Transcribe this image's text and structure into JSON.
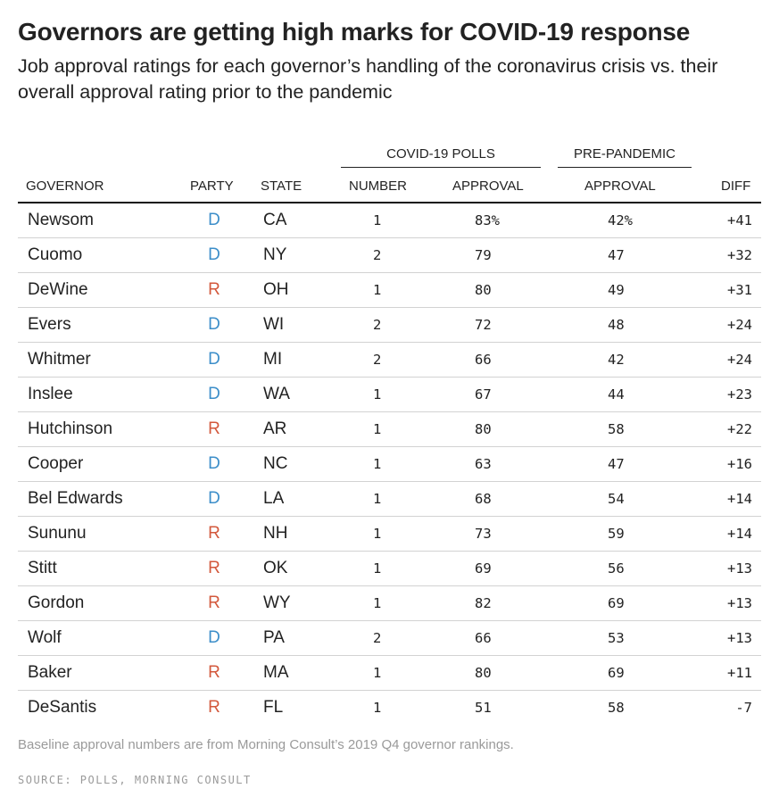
{
  "header": {
    "title": "Governors are getting high marks for COVID-19 response",
    "subtitle": "Job approval ratings for each governor’s handling of the coronavirus crisis vs. their overall approval rating prior to the pandemic"
  },
  "table": {
    "group_headers": {
      "covid": "COVID-19 POLLS",
      "pre": "PRE-PANDEMIC"
    },
    "columns": {
      "governor": "GOVERNOR",
      "party": "PARTY",
      "state": "STATE",
      "number": "NUMBER",
      "covid_approval": "APPROVAL",
      "pre_approval": "APPROVAL",
      "diff": "DIFF"
    },
    "colors": {
      "D": "#3c8ec9",
      "R": "#d3583c",
      "positive_diff": "#5fb8c4",
      "negative_diff": "#fbe3e8"
    }
  },
  "chart_data": {
    "type": "table",
    "title": "Governors are getting high marks for COVID-19 response",
    "rows": [
      {
        "governor": "Newsom",
        "party": "D",
        "state": "CA",
        "number": "1",
        "covid_approval": "83%",
        "pre_approval": "42%",
        "diff": "+41",
        "diff_value": 41
      },
      {
        "governor": "Cuomo",
        "party": "D",
        "state": "NY",
        "number": "2",
        "covid_approval": "79",
        "pre_approval": "47",
        "diff": "+32",
        "diff_value": 32
      },
      {
        "governor": "DeWine",
        "party": "R",
        "state": "OH",
        "number": "1",
        "covid_approval": "80",
        "pre_approval": "49",
        "diff": "+31",
        "diff_value": 31
      },
      {
        "governor": "Evers",
        "party": "D",
        "state": "WI",
        "number": "2",
        "covid_approval": "72",
        "pre_approval": "48",
        "diff": "+24",
        "diff_value": 24
      },
      {
        "governor": "Whitmer",
        "party": "D",
        "state": "MI",
        "number": "2",
        "covid_approval": "66",
        "pre_approval": "42",
        "diff": "+24",
        "diff_value": 24
      },
      {
        "governor": "Inslee",
        "party": "D",
        "state": "WA",
        "number": "1",
        "covid_approval": "67",
        "pre_approval": "44",
        "diff": "+23",
        "diff_value": 23
      },
      {
        "governor": "Hutchinson",
        "party": "R",
        "state": "AR",
        "number": "1",
        "covid_approval": "80",
        "pre_approval": "58",
        "diff": "+22",
        "diff_value": 22
      },
      {
        "governor": "Cooper",
        "party": "D",
        "state": "NC",
        "number": "1",
        "covid_approval": "63",
        "pre_approval": "47",
        "diff": "+16",
        "diff_value": 16
      },
      {
        "governor": "Bel Edwards",
        "party": "D",
        "state": "LA",
        "number": "1",
        "covid_approval": "68",
        "pre_approval": "54",
        "diff": "+14",
        "diff_value": 14
      },
      {
        "governor": "Sununu",
        "party": "R",
        "state": "NH",
        "number": "1",
        "covid_approval": "73",
        "pre_approval": "59",
        "diff": "+14",
        "diff_value": 14
      },
      {
        "governor": "Stitt",
        "party": "R",
        "state": "OK",
        "number": "1",
        "covid_approval": "69",
        "pre_approval": "56",
        "diff": "+13",
        "diff_value": 13
      },
      {
        "governor": "Gordon",
        "party": "R",
        "state": "WY",
        "number": "1",
        "covid_approval": "82",
        "pre_approval": "69",
        "diff": "+13",
        "diff_value": 13
      },
      {
        "governor": "Wolf",
        "party": "D",
        "state": "PA",
        "number": "2",
        "covid_approval": "66",
        "pre_approval": "53",
        "diff": "+13",
        "diff_value": 13
      },
      {
        "governor": "Baker",
        "party": "R",
        "state": "MA",
        "number": "1",
        "covid_approval": "80",
        "pre_approval": "69",
        "diff": "+11",
        "diff_value": 11
      },
      {
        "governor": "DeSantis",
        "party": "R",
        "state": "FL",
        "number": "1",
        "covid_approval": "51",
        "pre_approval": "58",
        "diff": "-7",
        "diff_value": -7
      }
    ]
  },
  "footer": {
    "note": "Baseline approval numbers are from Morning Consult’s 2019 Q4 governor rankings.",
    "source": "SOURCE: POLLS, MORNING CONSULT"
  }
}
